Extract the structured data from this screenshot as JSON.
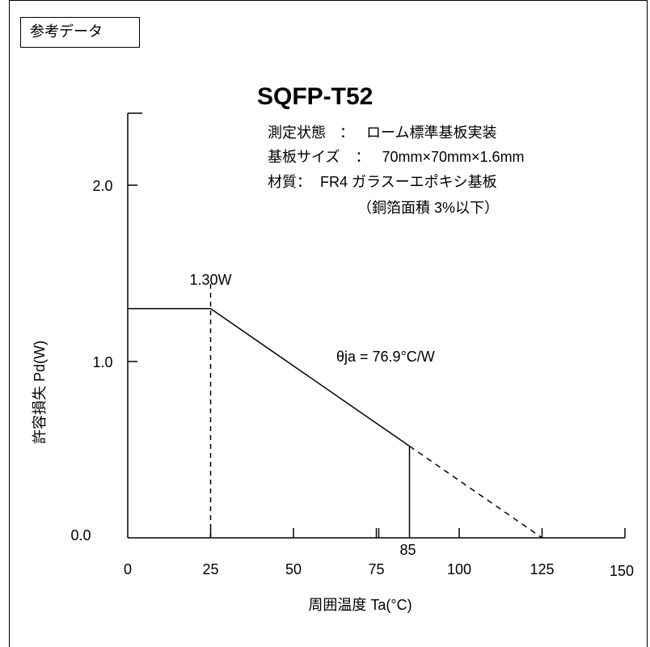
{
  "reference_label": "参考データ",
  "chart_data": {
    "type": "line",
    "title": "SQFP-T52",
    "conditions": [
      {
        "label": "測定状態",
        "sep": "：",
        "value": "ローム標準基板実装"
      },
      {
        "label": "基板サイズ",
        "sep": "：",
        "value": "70mm×70mm×1.6mm"
      },
      {
        "label": "材質：",
        "sep": "",
        "value": "FR4 ガラスーエポキシ基板"
      }
    ],
    "conditions_note": "（銅箔面積 3%以下）",
    "xlabel": "周囲温度 Ta(°C)",
    "ylabel": "許容損失 Pd(W)",
    "xlim": [
      0,
      150
    ],
    "ylim": [
      0,
      2.5
    ],
    "x_ticks": [
      "0",
      "25",
      "50",
      "75",
      "100",
      "125",
      "150"
    ],
    "x_tick_values": [
      0,
      25,
      50,
      75,
      100,
      125,
      150
    ],
    "minor_x_ticks": [
      75
    ],
    "y_ticks": [
      "0.0",
      "1.0",
      "2.0"
    ],
    "y_tick_values": [
      0,
      1,
      2
    ],
    "series": [
      {
        "style": "solid",
        "x": [
          0,
          25,
          85
        ],
        "y": [
          1.3,
          1.3,
          0.52
        ]
      },
      {
        "style": "dashed",
        "x": [
          85,
          125
        ],
        "y": [
          0.52,
          0
        ]
      }
    ],
    "vlines": [
      {
        "x": 25,
        "y_to": 1.45,
        "style": "dashed"
      },
      {
        "x": 85,
        "y_to": 0.52,
        "style": "solid"
      }
    ],
    "annotations": [
      {
        "id": "power-label",
        "text": "1.30W"
      },
      {
        "id": "theta-label",
        "text": "θja = 76.9°C/W"
      },
      {
        "id": "derating-label",
        "text": "85"
      }
    ]
  }
}
